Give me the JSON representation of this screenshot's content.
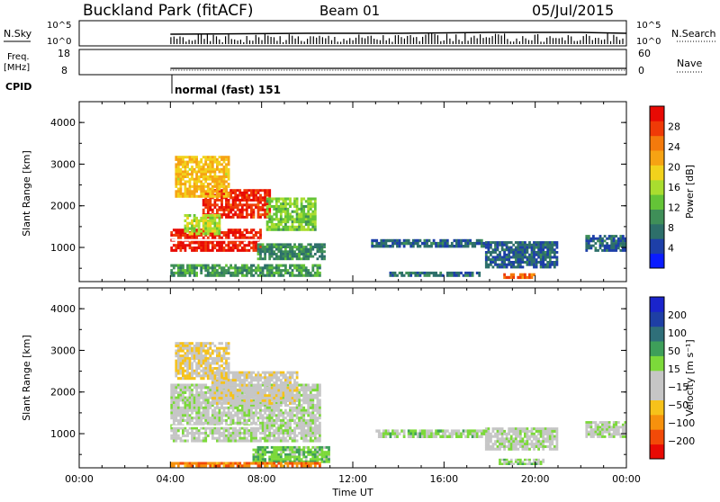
{
  "header": {
    "site": "Buckland Park (fitACF)",
    "beam": "Beam 01",
    "date": "05/Jul/2015"
  },
  "top_panels": {
    "nsky_label": "N.Sky",
    "nsky_ticks": [
      "10^5",
      "10^0"
    ],
    "nsearch_label": "N.Search",
    "nsearch_ticks": [
      "10^5",
      "10^0"
    ],
    "freq_label_line1": "Freq.",
    "freq_label_line2": "[MHz]",
    "freq_ticks": [
      "18",
      "8"
    ],
    "nave_label": "Nave",
    "nave_ticks": [
      "60",
      "0"
    ],
    "cpid_label": "CPID",
    "cpid_value": "normal (fast) 151"
  },
  "colors": {
    "power_scale": [
      "#0a1cff",
      "#1d3fa8",
      "#2d6f6a",
      "#3f8f58",
      "#64c437",
      "#a9dd2f",
      "#f2d21c",
      "#f6a313",
      "#f47a0c",
      "#ef3a07",
      "#e80a04"
    ],
    "velocity_scale": [
      "#e80a04",
      "#f24a08",
      "#f6910d",
      "#f6c21a",
      "#c6c6c6",
      "#c6c6c6",
      "#7cd93a",
      "#3e9f5a",
      "#2f6f79",
      "#1e3fa5",
      "#1a24cc"
    ],
    "white_line": "#ffffff"
  },
  "chart_data": [
    {
      "type": "heatmap",
      "name": "power",
      "xlabel": "Time UT",
      "ylabel": "Slant Range [km]",
      "xlim": [
        "00:00",
        "00:00"
      ],
      "ylim": [
        180,
        4500
      ],
      "yticks": [
        "1000",
        "2000",
        "3000",
        "4000"
      ],
      "xticks": [
        "00:00",
        "04:00",
        "08:00",
        "12:00",
        "16:00",
        "20:00",
        "00:00"
      ],
      "colorbar_label": "Power [dB]",
      "colorbar_ticks": [
        "4",
        "8",
        "12",
        "16",
        "20",
        "24",
        "28"
      ],
      "clim": [
        0,
        30
      ],
      "patches": [
        {
          "t0": 4.0,
          "t1": 10.6,
          "r0": 300,
          "r1": 600,
          "v": 10
        },
        {
          "t0": 4.0,
          "t1": 8.0,
          "r0": 900,
          "r1": 1450,
          "v": 28
        },
        {
          "t0": 5.4,
          "t1": 8.4,
          "r0": 1700,
          "r1": 2400,
          "v": 27
        },
        {
          "t0": 4.6,
          "t1": 6.2,
          "r0": 1300,
          "r1": 1800,
          "v": 15
        },
        {
          "t0": 8.2,
          "t1": 10.4,
          "r0": 1400,
          "r1": 2200,
          "v": 13
        },
        {
          "t0": 4.2,
          "t1": 6.6,
          "r0": 2200,
          "r1": 3200,
          "v": 19
        },
        {
          "t0": 7.8,
          "t1": 10.8,
          "r0": 700,
          "r1": 1100,
          "v": 9
        },
        {
          "t0": 12.8,
          "t1": 17.8,
          "r0": 1000,
          "r1": 1200,
          "v": 6
        },
        {
          "t0": 17.8,
          "t1": 21.0,
          "r0": 500,
          "r1": 1150,
          "v": 6
        },
        {
          "t0": 18.6,
          "t1": 20.0,
          "r0": 250,
          "r1": 380,
          "v": 24
        },
        {
          "t0": 22.2,
          "t1": 24.0,
          "r0": 900,
          "r1": 1300,
          "v": 6
        },
        {
          "t0": 13.6,
          "t1": 17.6,
          "r0": 300,
          "r1": 420,
          "v": 7
        }
      ]
    },
    {
      "type": "heatmap",
      "name": "velocity",
      "xlabel": "Time UT",
      "ylabel": "Slant Range [km]",
      "xlim": [
        "00:00",
        "00:00"
      ],
      "ylim": [
        180,
        4500
      ],
      "yticks": [
        "1000",
        "2000",
        "3000",
        "4000"
      ],
      "xticks": [
        "00:00",
        "04:00",
        "08:00",
        "12:00",
        "16:00",
        "20:00",
        "00:00"
      ],
      "colorbar_label": "Velocity [m s⁻¹]",
      "colorbar_ticks": [
        "−200",
        "−100",
        "−50",
        "−15",
        "15",
        "50",
        "100",
        "200"
      ],
      "clim": [
        -250,
        250
      ],
      "patches": [
        {
          "t0": 4.0,
          "t1": 10.6,
          "r0": 800,
          "r1": 2200,
          "v": 0
        },
        {
          "t0": 5.8,
          "t1": 9.6,
          "r0": 1700,
          "r1": 2500,
          "v": -40
        },
        {
          "t0": 4.2,
          "t1": 6.6,
          "r0": 2300,
          "r1": 3200,
          "v": -60
        },
        {
          "t0": 7.6,
          "t1": 11.0,
          "r0": 300,
          "r1": 700,
          "v": 60
        },
        {
          "t0": 4.0,
          "t1": 10.6,
          "r0": 200,
          "r1": 320,
          "v": -150
        },
        {
          "t0": 17.8,
          "t1": 21.0,
          "r0": 600,
          "r1": 1150,
          "v": 0
        },
        {
          "t0": 13.0,
          "t1": 17.8,
          "r0": 900,
          "r1": 1100,
          "v": 30
        },
        {
          "t0": 18.4,
          "t1": 20.4,
          "r0": 250,
          "r1": 400,
          "v": 40
        },
        {
          "t0": 22.2,
          "t1": 24.0,
          "r0": 900,
          "r1": 1300,
          "v": 0
        }
      ]
    }
  ]
}
